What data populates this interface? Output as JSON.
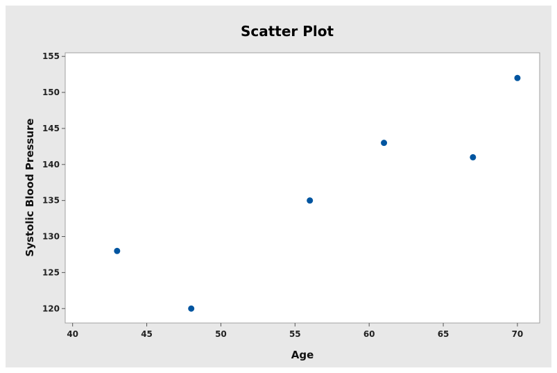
{
  "chart_data": {
    "type": "scatter",
    "title": "Scatter Plot",
    "xlabel": "Age",
    "ylabel": "Systolic Blood Pressure",
    "xlim": [
      39.5,
      71.5
    ],
    "ylim": [
      118,
      155.5
    ],
    "xticks": [
      40,
      45,
      50,
      55,
      60,
      65,
      70
    ],
    "yticks": [
      120,
      125,
      130,
      135,
      140,
      145,
      150,
      155
    ],
    "grid": false,
    "legend": false,
    "marker_color": "#0055a0",
    "points": [
      {
        "x": 43,
        "y": 128
      },
      {
        "x": 48,
        "y": 120
      },
      {
        "x": 56,
        "y": 135
      },
      {
        "x": 61,
        "y": 143
      },
      {
        "x": 67,
        "y": 141
      },
      {
        "x": 70,
        "y": 152
      }
    ]
  }
}
